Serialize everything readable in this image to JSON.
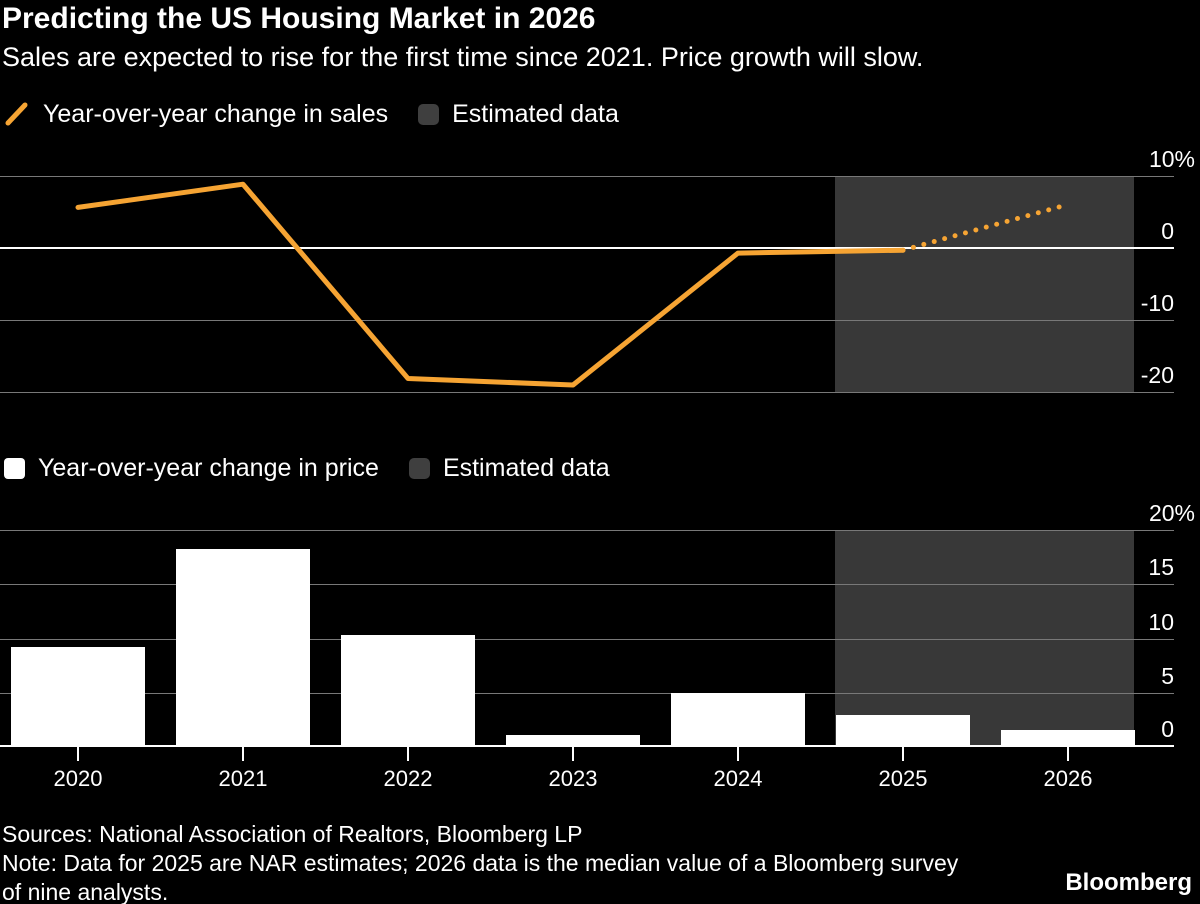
{
  "title": "Predicting the US Housing Market in 2026",
  "subtitle": "Sales are expected to rise for the first time since 2021. Price growth will slow.",
  "legend_sales": {
    "series_label": "Year-over-year change in sales",
    "estimated_label": "Estimated data"
  },
  "legend_price": {
    "series_label": "Year-over-year change in price",
    "estimated_label": "Estimated data"
  },
  "footer": {
    "sources": "Sources: National Association of Realtors, Bloomberg LP",
    "note_line1": "Note: Data for 2025 are NAR estimates; 2026 data is the median value of a Bloomberg survey",
    "note_line2": "of nine analysts.",
    "brand": "Bloomberg"
  },
  "colors": {
    "background": "#000000",
    "text": "#FFFFFF",
    "accent_orange": "#F6A433",
    "bar_white": "#FFFFFF",
    "estimated_region": "#383838",
    "estimated_swatch": "#3F3F3F",
    "gridline": "#787878",
    "zero_line": "#FFFFFF"
  },
  "chart_data": [
    {
      "type": "line",
      "name": "Year-over-year change in sales",
      "unit": "%",
      "x": [
        "2020",
        "2021",
        "2022",
        "2023",
        "2024",
        "2025",
        "2026"
      ],
      "values": [
        5.6,
        8.8,
        -18.0,
        -18.9,
        -0.7,
        -0.3,
        6.0
      ],
      "solid_range": [
        "2020",
        "2025"
      ],
      "dotted_range": [
        "2025",
        "2026"
      ],
      "estimated_range": [
        "2025",
        "2026"
      ],
      "ytick_labels": [
        "10%",
        "0",
        "-10",
        "-20"
      ],
      "ytick_values": [
        10,
        0,
        -10,
        -20
      ],
      "ylim": [
        -22,
        13.5
      ],
      "grid": true,
      "legend_position": "top-left",
      "line_color": "#F6A433"
    },
    {
      "type": "bar",
      "name": "Year-over-year change in price",
      "unit": "%",
      "categories": [
        "2020",
        "2021",
        "2022",
        "2023",
        "2024",
        "2025",
        "2026"
      ],
      "values": [
        9.1,
        18.2,
        10.2,
        0.9,
        4.8,
        2.8,
        1.4
      ],
      "estimated_categories": [
        "2025",
        "2026"
      ],
      "ytick_labels": [
        "20%",
        "15",
        "10",
        "5",
        "0"
      ],
      "ytick_values": [
        20,
        15,
        10,
        5,
        0
      ],
      "ylim": [
        0,
        20
      ],
      "grid": true,
      "legend_position": "top-left",
      "bar_color": "#FFFFFF"
    }
  ]
}
